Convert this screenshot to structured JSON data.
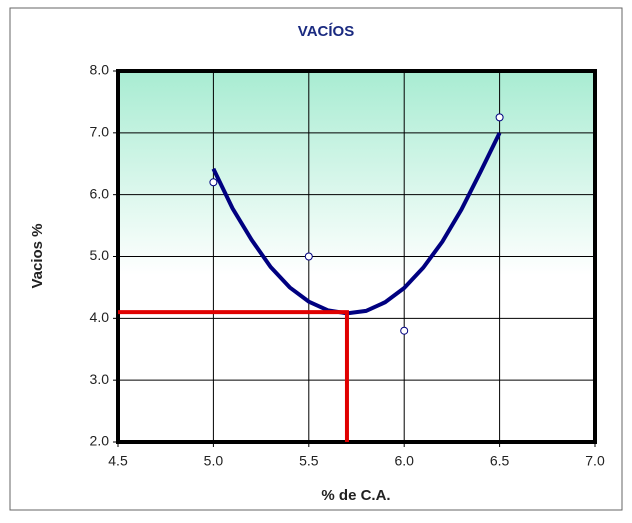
{
  "chart_data": {
    "type": "scatter",
    "title": "VACÍOS",
    "x_label": "% de C.A.",
    "y_label": "Vacios %",
    "xlim": [
      4.5,
      7.0
    ],
    "xticks": [
      {
        "value": 4.5,
        "label": "4.5"
      },
      {
        "value": 5.0,
        "label": "5.0"
      },
      {
        "value": 5.5,
        "label": "5.5"
      },
      {
        "value": 6.0,
        "label": "6.0"
      },
      {
        "value": 6.5,
        "label": "6.5"
      },
      {
        "value": 7.0,
        "label": "7.0"
      }
    ],
    "ylim": [
      2.0,
      8.0
    ],
    "yticks": [
      {
        "value": 2.0,
        "label": "2.0"
      },
      {
        "value": 3.0,
        "label": "3.0"
      },
      {
        "value": 4.0,
        "label": "4.0"
      },
      {
        "value": 5.0,
        "label": "5.0"
      },
      {
        "value": 6.0,
        "label": "6.0"
      },
      {
        "value": 7.0,
        "label": "7.0"
      },
      {
        "value": 8.0,
        "label": "8.0"
      }
    ],
    "grid": true,
    "series": [
      {
        "type": "line",
        "color": "#000080",
        "x": [
          5.0,
          5.1,
          5.2,
          5.3,
          5.4,
          5.5,
          5.6,
          5.7,
          5.8,
          5.9,
          6.0,
          6.1,
          6.2,
          6.3,
          6.4,
          6.5
        ],
        "y": [
          6.42,
          5.78,
          5.27,
          4.83,
          4.5,
          4.27,
          4.13,
          4.08,
          4.12,
          4.26,
          4.49,
          4.82,
          5.24,
          5.76,
          6.37,
          7.0
        ]
      },
      {
        "type": "points",
        "color": "#000080",
        "x": [
          5.0,
          5.5,
          6.0,
          6.5
        ],
        "y": [
          6.2,
          5.0,
          3.8,
          7.25
        ]
      },
      {
        "type": "line",
        "color": "#e00000",
        "x": [
          4.5,
          5.7,
          5.7
        ],
        "y": [
          4.1,
          4.1,
          2.0
        ]
      }
    ]
  }
}
